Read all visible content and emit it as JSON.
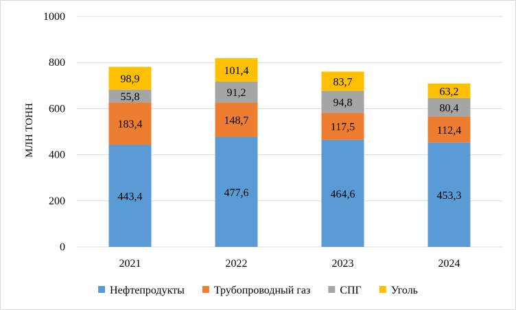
{
  "chart_data": {
    "type": "bar",
    "stacked": true,
    "categories": [
      "2021",
      "2022",
      "2023",
      "2024"
    ],
    "series": [
      {
        "name": "Нефтепродукты",
        "color": "#5b9bd5",
        "values": [
          443.4,
          477.6,
          464.6,
          453.3
        ],
        "labels": [
          "443,4",
          "477,6",
          "464,6",
          "453,3"
        ]
      },
      {
        "name": "Трубопроводный газ",
        "color": "#ed7d31",
        "values": [
          183.4,
          148.7,
          117.5,
          112.4
        ],
        "labels": [
          "183,4",
          "148,7",
          "117,5",
          "112,4"
        ]
      },
      {
        "name": "СПГ",
        "color": "#a5a5a5",
        "values": [
          55.8,
          91.2,
          94.8,
          80.4
        ],
        "labels": [
          "55,8",
          "91,2",
          "94,8",
          "80,4"
        ]
      },
      {
        "name": "Уголь",
        "color": "#ffc000",
        "values": [
          98.9,
          101.4,
          83.7,
          63.2
        ],
        "labels": [
          "98,9",
          "101,4",
          "83,7",
          "63,2"
        ]
      }
    ],
    "ylabel": "МЛН ТОНН",
    "ylim": [
      0,
      1000
    ],
    "yticks": [
      "0",
      "200",
      "400",
      "600",
      "800",
      "1000"
    ],
    "grid": true,
    "legend_position": "bottom"
  }
}
